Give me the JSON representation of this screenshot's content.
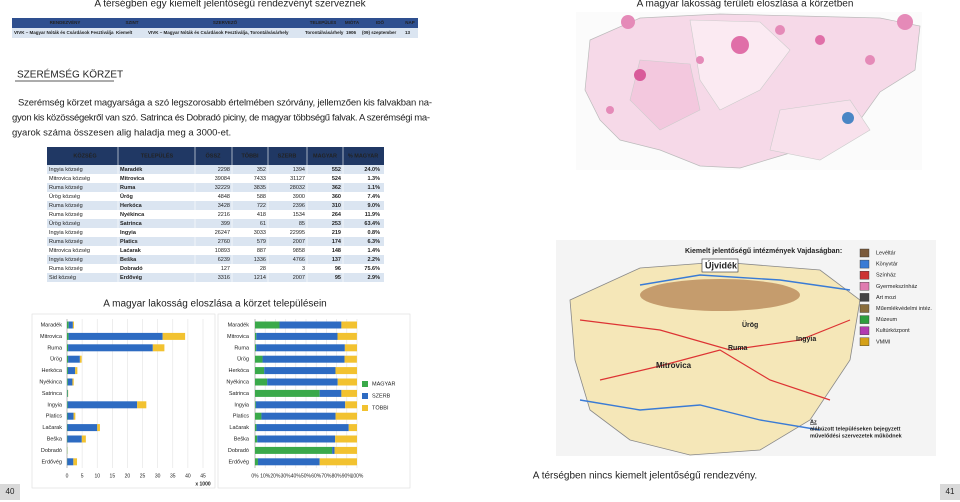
{
  "header_left": "A térségben egy kiemelt jelentőségű rendezvényt szerveznek",
  "header_right": "A magyar lakosság területi eloszlása a körzetben",
  "event_table": {
    "columns": [
      "RENDEZVÉNY",
      "SZINT",
      "SZERVEZŐ",
      "TELEPÜLÉS",
      "MIÓTA",
      "IDŐ",
      "NAP"
    ],
    "rows": [
      [
        "VIVK – Magyar Nóták és Csárdások Fesztiválja",
        "Kiemelt",
        "VIVK – Magyar Nóták és Csárdások Fesztiválja, Torontálvásárhely",
        "Torontálvásárhely",
        "1906",
        "(09) szeptember",
        "13"
      ]
    ]
  },
  "section_title": "SZERÉMSÉG KÖRZET",
  "paragraph": [
    "Szerémség körzet magyarsága a szó legszorosabb értelmében szórvány, jellemzően kis falvakban na-",
    "gyon kis közösségekről van szó. Satrinca és Dobradó piciny, de magyar többségű falvak. A szerémségi ma-",
    "gyarok száma összesen alig haladja meg a 3000-et."
  ],
  "population_table": {
    "columns": [
      "KÖZSÉG",
      "TELEPÜLÉS",
      "ÖSSZ",
      "TÖBBI",
      "SZERB",
      "MAGYAR",
      "% MAGYAR"
    ],
    "rows": [
      [
        "Ingyia község",
        "Maradék",
        "2298",
        "352",
        "1394",
        "552",
        "24.0%"
      ],
      [
        "Mitrovica község",
        "Mitrovica",
        "39084",
        "7433",
        "31127",
        "524",
        "1.3%"
      ],
      [
        "Ruma község",
        "Ruma",
        "32229",
        "3835",
        "28032",
        "362",
        "1.1%"
      ],
      [
        "Ürög község",
        "Ürög",
        "4848",
        "588",
        "3900",
        "360",
        "7.4%"
      ],
      [
        "Ruma község",
        "Herkóca",
        "3428",
        "722",
        "2396",
        "310",
        "9.0%"
      ],
      [
        "Ruma község",
        "Nyékinca",
        "2216",
        "418",
        "1534",
        "264",
        "11.9%"
      ],
      [
        "Ürög község",
        "Satrinca",
        "399",
        "61",
        "85",
        "253",
        "63.4%"
      ],
      [
        "Ingyia község",
        "Ingyia",
        "26247",
        "3033",
        "22995",
        "219",
        "0.8%"
      ],
      [
        "Ruma község",
        "Platics",
        "2760",
        "579",
        "2007",
        "174",
        "6.3%"
      ],
      [
        "Mitrovica község",
        "Laćarak",
        "10893",
        "887",
        "9858",
        "148",
        "1.4%"
      ],
      [
        "Ingyia község",
        "Beška",
        "6239",
        "1336",
        "4766",
        "137",
        "2.2%"
      ],
      [
        "Ruma község",
        "Dobradó",
        "127",
        "28",
        "3",
        "96",
        "75.6%"
      ],
      [
        "Sid község",
        "Erdővég",
        "3316",
        "1214",
        "2007",
        "95",
        "2.9%"
      ]
    ]
  },
  "charts_caption": "A magyar lakosság eloszlása a körzet településein",
  "chart_data": [
    {
      "type": "bar",
      "orientation": "horizontal",
      "stacked": true,
      "categories": [
        "Maradék",
        "Mitrovica",
        "Ruma",
        "Ürög",
        "Herkóca",
        "Nyékinca",
        "Satrinca",
        "Ingyia",
        "Platics",
        "Lačarak",
        "Beška",
        "Dobradó",
        "Erdővég"
      ],
      "series": [
        {
          "color": "#3aa94a",
          "values": [
            0.552,
            0.524,
            0.362,
            0.36,
            0.31,
            0.264,
            0.253,
            0.219,
            0.174,
            0.148,
            0.137,
            0.096,
            0.095
          ]
        },
        {
          "color": "#2d6bc2",
          "values": [
            1.394,
            31.127,
            28.032,
            3.9,
            2.396,
            1.534,
            0.085,
            22.995,
            2.007,
            9.858,
            4.766,
            0.003,
            2.007
          ]
        },
        {
          "color": "#f2c230",
          "values": [
            0.352,
            7.433,
            3.835,
            0.588,
            0.722,
            0.418,
            0.061,
            3.033,
            0.579,
            0.887,
            1.336,
            0.028,
            1.214
          ]
        }
      ],
      "xlim": [
        0,
        45
      ],
      "xticks": [
        0,
        5,
        10,
        15,
        20,
        25,
        30,
        35,
        40,
        45
      ],
      "xlabel": "x 1000",
      "grid": true
    },
    {
      "type": "bar",
      "orientation": "horizontal",
      "stacked": true,
      "categories": [
        "Maradék",
        "Mitrovica",
        "Ruma",
        "Ürög",
        "Herkóca",
        "Nyékinca",
        "Satrinca",
        "Ingyia",
        "Platics",
        "Lačarak",
        "Beška",
        "Dobradó",
        "Erdővég"
      ],
      "series": [
        {
          "name": "MAGYAR",
          "color": "#3aa94a",
          "values": [
            24.0,
            1.3,
            1.1,
            7.4,
            9.0,
            11.9,
            63.4,
            0.8,
            6.3,
            1.4,
            2.2,
            75.6,
            2.9
          ]
        },
        {
          "name": "SZERB",
          "color": "#2d6bc2",
          "values": [
            60.7,
            79.6,
            87.0,
            80.4,
            69.9,
            69.2,
            21.3,
            87.6,
            72.7,
            90.5,
            76.4,
            2.4,
            60.5
          ]
        },
        {
          "name": "TÖBBI",
          "color": "#f2c230",
          "values": [
            15.3,
            19.0,
            11.9,
            12.1,
            21.1,
            18.9,
            15.3,
            11.6,
            21.0,
            8.1,
            21.4,
            22.0,
            36.6
          ]
        }
      ],
      "xlim": [
        0,
        100
      ],
      "xticks": [
        {
          "value": 0,
          "label": "0%"
        },
        {
          "value": 10,
          "label": "10%"
        },
        {
          "value": 20,
          "label": "20%"
        },
        {
          "value": 30,
          "label": "30%"
        },
        {
          "value": 40,
          "label": "40%"
        },
        {
          "value": 50,
          "label": "50%"
        },
        {
          "value": 60,
          "label": "60%"
        },
        {
          "value": 70,
          "label": "70%"
        },
        {
          "value": 80,
          "label": "80%"
        },
        {
          "value": 90,
          "label": "90%"
        },
        {
          "value": 100,
          "label": "100%"
        }
      ],
      "grid": true,
      "legend": "right"
    }
  ],
  "map": {
    "title": "Kiemelt jelentőségű intézmények Vajdaságban:",
    "legend": [
      "Levéltár",
      "Könyvtár",
      "Színház",
      "Gyermekszínház",
      "Art mozi",
      "Műemlékvédelmi intéz.",
      "Múzeum",
      "Kultúrközpont",
      "VMMI"
    ],
    "places": [
      "Újvidék",
      "Ürög",
      "Ingyia",
      "Ruma",
      "Mitrovica"
    ],
    "note": [
      "Az",
      "aláhúzott településeken bejegyzett",
      "művelődési szervezetek működnek"
    ]
  },
  "no_event_text": "A térségben nincs kiemelt jelentőségű rendezvény.",
  "page_numbers": [
    "40",
    "41"
  ]
}
